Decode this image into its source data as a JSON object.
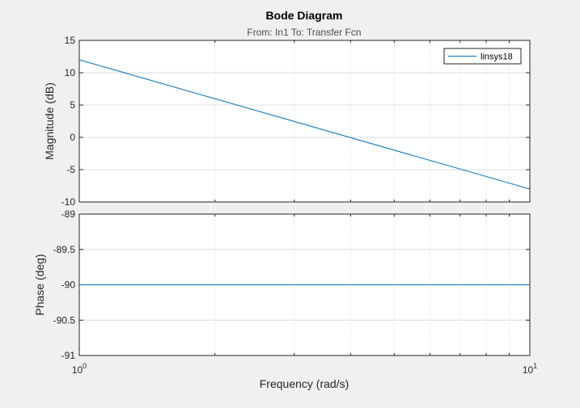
{
  "chart_data": {
    "type": "line",
    "title": "Bode Diagram",
    "subtitle": "From: In1  To: Transfer Fcn",
    "xlabel": "Frequency  (rad/s)",
    "x_scale": "log",
    "xlim": [
      1,
      10
    ],
    "x_ticks": [
      {
        "value": 1,
        "base": "10",
        "exp": "0"
      },
      {
        "value": 10,
        "base": "10",
        "exp": "1"
      }
    ],
    "grid": true,
    "legend": {
      "position": "top-right",
      "entries": [
        "linsys18"
      ]
    },
    "colors": {
      "series": "#0072bd",
      "grid": "#dcdcdc",
      "axes": "#262626",
      "background": "#f0f0f0",
      "plot_background": "#ffffff"
    },
    "panels": [
      {
        "name": "magnitude",
        "ylabel": "Magnitude (dB)",
        "ylim": [
          -10,
          15
        ],
        "y_ticks": [
          {
            "value": 15,
            "label": "15"
          },
          {
            "value": 10,
            "label": "10"
          },
          {
            "value": 5,
            "label": "5"
          },
          {
            "value": 0,
            "label": "0"
          },
          {
            "value": -5,
            "label": "-5"
          },
          {
            "value": -10,
            "label": "-10"
          }
        ],
        "series": [
          {
            "name": "linsys18",
            "x": [
              1,
              10
            ],
            "y": [
              12,
              -8
            ]
          }
        ]
      },
      {
        "name": "phase",
        "ylabel": "Phase (deg)",
        "ylim": [
          -91,
          -89
        ],
        "y_ticks": [
          {
            "value": -89,
            "label": "-89"
          },
          {
            "value": -89.5,
            "label": "-89.5"
          },
          {
            "value": -90,
            "label": "-90"
          },
          {
            "value": -90.5,
            "label": "-90.5"
          },
          {
            "value": -91,
            "label": "-91"
          }
        ],
        "series": [
          {
            "name": "linsys18",
            "x": [
              1,
              10
            ],
            "y": [
              -90,
              -90
            ]
          }
        ]
      }
    ]
  }
}
